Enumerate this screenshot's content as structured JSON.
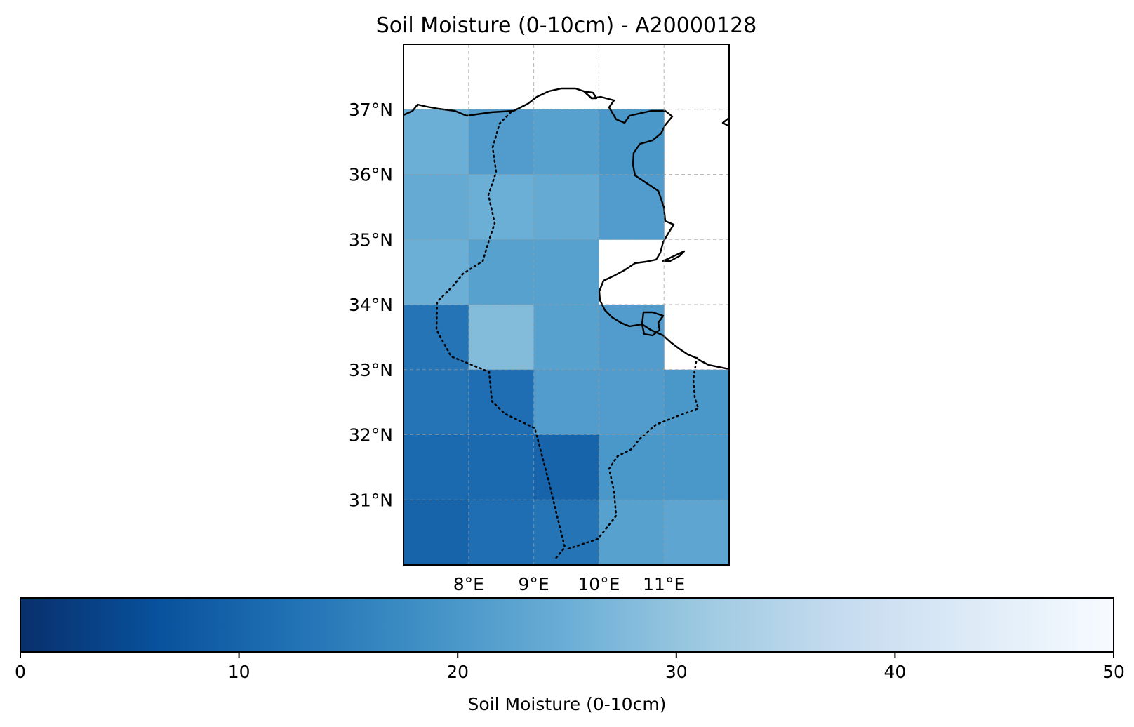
{
  "chart_data": {
    "type": "heatmap",
    "title": "Soil Moisture (0-10cm) - A20000128",
    "map_extent": {
      "lon": [
        7.0,
        12.0
      ],
      "lat": [
        30.0,
        38.0
      ]
    },
    "x_ticks": [
      {
        "value": 8,
        "label": "8°E"
      },
      {
        "value": 9,
        "label": "9°E"
      },
      {
        "value": 10,
        "label": "10°E"
      },
      {
        "value": 11,
        "label": "11°E"
      }
    ],
    "y_ticks": [
      {
        "value": 37,
        "label": "37°N"
      },
      {
        "value": 36,
        "label": "36°N"
      },
      {
        "value": 35,
        "label": "35°N"
      },
      {
        "value": 34,
        "label": "34°N"
      },
      {
        "value": 33,
        "label": "33°N"
      },
      {
        "value": 32,
        "label": "32°N"
      },
      {
        "value": 31,
        "label": "31°N"
      }
    ],
    "grid": true,
    "cell_size_deg": 1,
    "lon_edges": [
      7,
      8,
      9,
      10,
      11,
      12
    ],
    "lat_edges": [
      30,
      31,
      32,
      33,
      34,
      35,
      36,
      37
    ],
    "rows_north_to_south": [
      [
        25,
        21,
        22,
        20,
        null
      ],
      [
        24,
        25,
        24,
        21,
        null
      ],
      [
        25,
        22,
        22,
        null,
        null
      ],
      [
        13,
        28,
        22,
        21,
        null
      ],
      [
        13,
        12,
        21,
        21,
        20
      ],
      [
        11,
        11,
        10,
        20,
        20
      ],
      [
        10,
        12,
        13,
        22,
        23
      ]
    ],
    "colorbar": {
      "label": "Soil Moisture (0-10cm)",
      "min": 0,
      "max": 50,
      "ticks": [
        0,
        10,
        20,
        30,
        40,
        50
      ],
      "colormap": [
        "#08306b",
        "#08519c",
        "#2171b5",
        "#4292c6",
        "#6baed6",
        "#9ecae1",
        "#c6dbef",
        "#deebf7",
        "#f7fbff"
      ]
    }
  }
}
